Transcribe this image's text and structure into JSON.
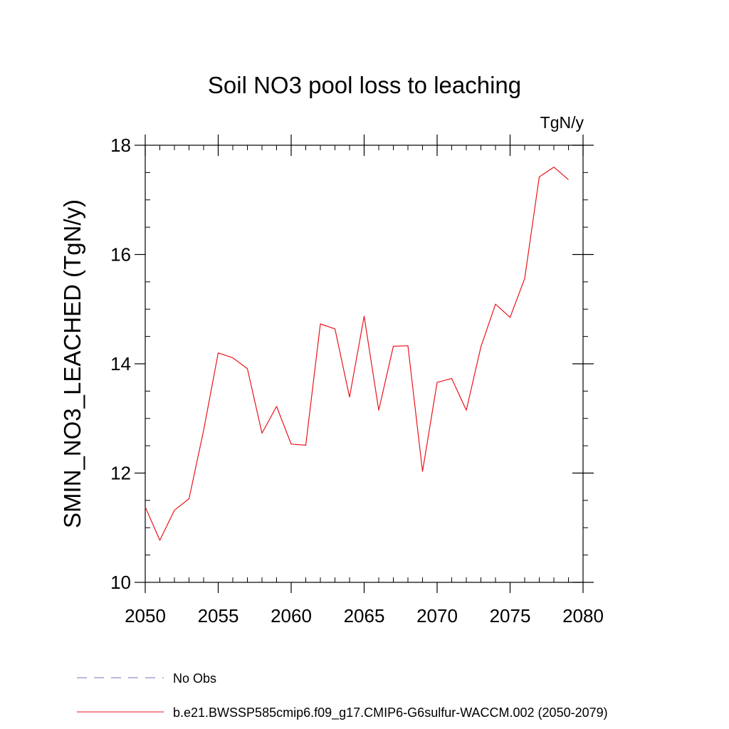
{
  "chart_data": {
    "type": "line",
    "title": "Soil NO3 pool loss to leaching",
    "units": "TgN/y",
    "ylabel": "SMIN_NO3_LEACHED  (TgN/y)",
    "xlabel": "",
    "xlim": [
      2050,
      2080
    ],
    "ylim": [
      10,
      18
    ],
    "x_ticks": [
      2050,
      2055,
      2060,
      2065,
      2070,
      2075,
      2080
    ],
    "y_ticks": [
      10,
      12,
      14,
      16,
      18
    ],
    "x_minor_step": 1,
    "y_minor_step": 0.5,
    "grid": false,
    "legend_position": "bottom-left",
    "series": [
      {
        "name": "b.e21.BWSSP585cmip6.f09_g17.CMIP6-G6sulfur-WACCM.002 (2050-2079)",
        "color": "#e8141c",
        "dash": "solid",
        "x": [
          2050,
          2051,
          2052,
          2053,
          2054,
          2055,
          2056,
          2057,
          2058,
          2059,
          2060,
          2061,
          2062,
          2063,
          2064,
          2065,
          2066,
          2067,
          2068,
          2069,
          2070,
          2071,
          2072,
          2073,
          2074,
          2075,
          2076,
          2077,
          2078,
          2079
        ],
        "y": [
          11.38,
          10.77,
          11.32,
          11.53,
          12.78,
          14.2,
          14.11,
          13.91,
          12.73,
          13.22,
          12.53,
          12.51,
          14.73,
          14.64,
          13.39,
          14.87,
          13.15,
          14.32,
          14.33,
          12.03,
          13.66,
          13.73,
          13.15,
          14.31,
          15.09,
          14.85,
          15.56,
          17.42,
          17.6,
          17.37
        ]
      }
    ],
    "legend": [
      {
        "label": "No Obs",
        "color": "#7a6fb8",
        "dash": "dashed"
      },
      {
        "label": "b.e21.BWSSP585cmip6.f09_g17.CMIP6-G6sulfur-WACCM.002 (2050-2079)",
        "color": "#e8141c",
        "dash": "solid"
      }
    ]
  }
}
